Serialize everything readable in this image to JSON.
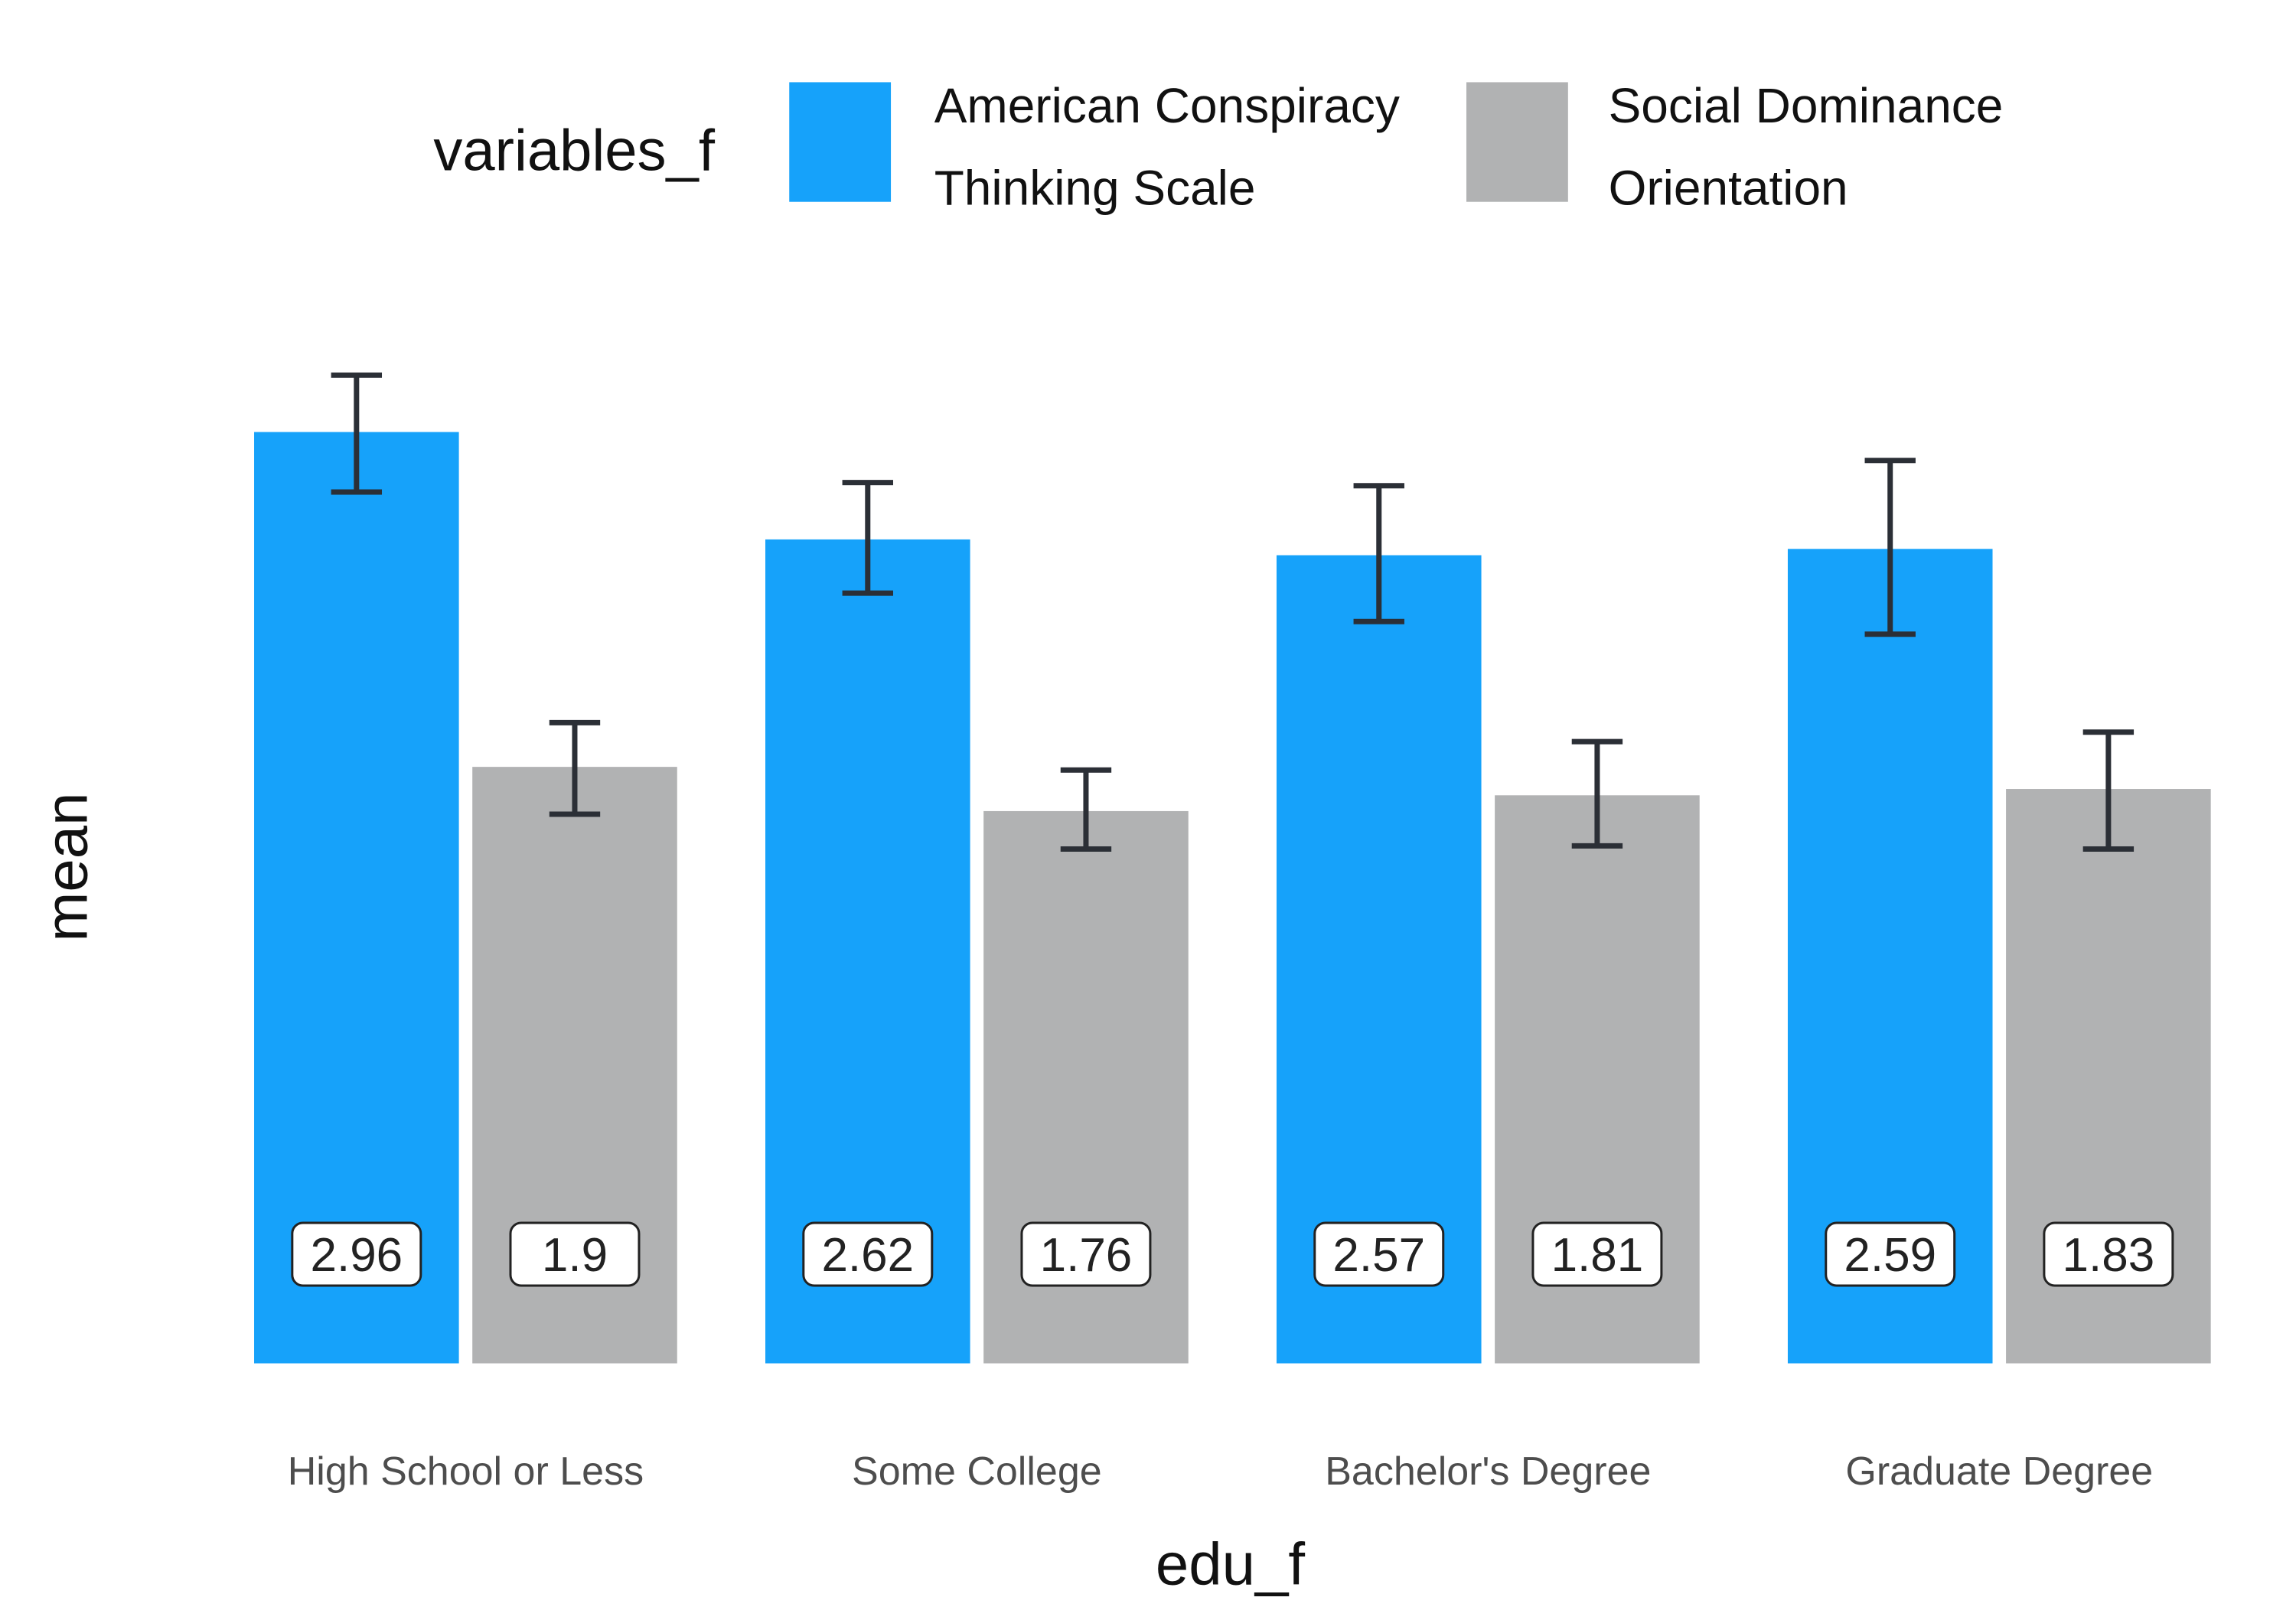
{
  "chart_data": {
    "type": "bar",
    "xlabel": "edu_f",
    "ylabel": "mean",
    "legend_title": "variables_f",
    "legend_position": "top",
    "grid": false,
    "ylim": [
      0,
      3.2
    ],
    "categories": [
      "High School or Less",
      "Some College",
      "Bachelor's Degree",
      "Graduate Degree"
    ],
    "series": [
      {
        "name_lines": [
          "American Conspiracy",
          "Thinking Scale"
        ],
        "color": "#16A2FA",
        "values": [
          2.96,
          2.62,
          2.57,
          2.59
        ],
        "value_labels": [
          "2.96",
          "2.62",
          "2.57",
          "2.59"
        ],
        "error_low": [
          2.77,
          2.45,
          2.36,
          2.32
        ],
        "error_high": [
          3.14,
          2.8,
          2.79,
          2.87
        ]
      },
      {
        "name_lines": [
          "Social Dominance",
          "Orientation"
        ],
        "color": "#B1B2B3",
        "values": [
          1.9,
          1.76,
          1.81,
          1.83
        ],
        "value_labels": [
          "1.9",
          "1.76",
          "1.81",
          "1.83"
        ],
        "error_low": [
          1.75,
          1.64,
          1.65,
          1.64
        ],
        "error_high": [
          2.04,
          1.89,
          1.98,
          2.01
        ]
      }
    ]
  }
}
